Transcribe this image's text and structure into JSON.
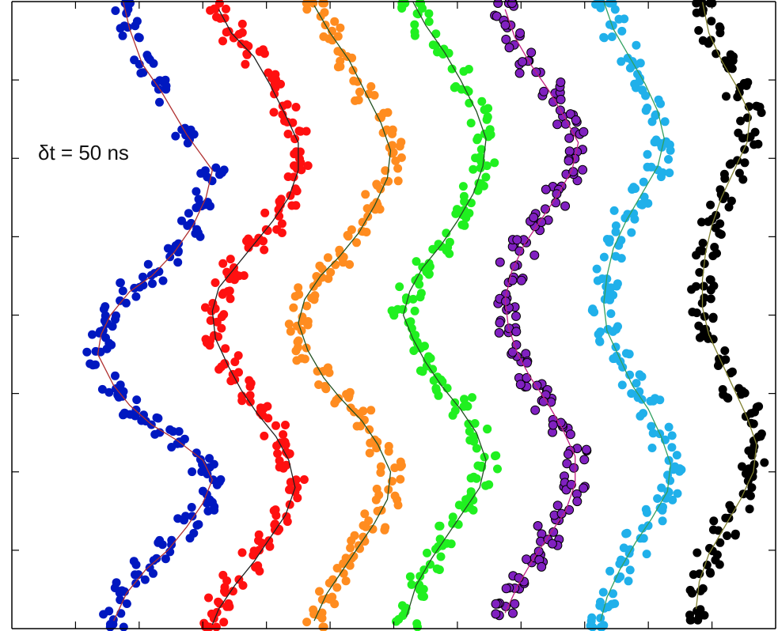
{
  "chart_data": {
    "type": "scatter",
    "title": "",
    "xlabel": "",
    "ylabel": "",
    "xlim": [
      0,
      12
    ],
    "ylim": [
      0,
      8
    ],
    "grid": false,
    "legend": "none",
    "annotation": "δt = 50 ns",
    "x_ticks": [
      1,
      2,
      3,
      4,
      5,
      6,
      7,
      8,
      9,
      10,
      11
    ],
    "y_ticks": [
      1,
      2,
      3,
      4,
      5,
      6,
      7
    ],
    "series": [
      {
        "color": "#0018c0",
        "edge": "#0018c0",
        "fit_color": "#b03030",
        "points": [
          [
            1.75,
            8.0
          ],
          [
            1.85,
            7.65
          ],
          [
            2.05,
            7.2
          ],
          [
            2.35,
            6.85
          ],
          [
            2.75,
            6.3
          ],
          [
            3.15,
            5.85
          ],
          [
            3.05,
            5.5
          ],
          [
            2.85,
            5.15
          ],
          [
            2.55,
            4.8
          ],
          [
            2.2,
            4.5
          ],
          [
            1.85,
            4.3
          ],
          [
            1.55,
            4.0
          ],
          [
            1.4,
            3.75
          ],
          [
            1.35,
            3.5
          ],
          [
            1.6,
            3.1
          ],
          [
            1.85,
            2.85
          ],
          [
            2.2,
            2.6
          ],
          [
            2.6,
            2.4
          ],
          [
            3.0,
            2.15
          ],
          [
            3.15,
            1.9
          ],
          [
            3.0,
            1.6
          ],
          [
            2.75,
            1.3
          ],
          [
            2.45,
            1.0
          ],
          [
            2.1,
            0.75
          ],
          [
            1.8,
            0.45
          ],
          [
            1.6,
            0.1
          ]
        ]
      },
      {
        "color": "#ff1010",
        "edge": "#ff1010",
        "fit_color": "#202020",
        "points": [
          [
            3.25,
            7.9
          ],
          [
            3.45,
            7.6
          ],
          [
            3.8,
            7.3
          ],
          [
            4.05,
            6.95
          ],
          [
            4.3,
            6.55
          ],
          [
            4.5,
            6.2
          ],
          [
            4.5,
            5.85
          ],
          [
            4.35,
            5.5
          ],
          [
            4.1,
            5.2
          ],
          [
            3.8,
            4.9
          ],
          [
            3.5,
            4.6
          ],
          [
            3.25,
            4.35
          ],
          [
            3.15,
            4.05
          ],
          [
            3.2,
            3.7
          ],
          [
            3.4,
            3.35
          ],
          [
            3.6,
            3.05
          ],
          [
            3.85,
            2.75
          ],
          [
            4.15,
            2.45
          ],
          [
            4.35,
            2.15
          ],
          [
            4.45,
            1.8
          ],
          [
            4.3,
            1.45
          ],
          [
            4.05,
            1.15
          ],
          [
            3.8,
            0.85
          ],
          [
            3.5,
            0.55
          ],
          [
            3.25,
            0.25
          ],
          [
            3.15,
            0.05
          ]
        ]
      },
      {
        "color": "#ff8c20",
        "edge": "#ff8c20",
        "fit_color": "#205020",
        "points": [
          [
            4.75,
            7.95
          ],
          [
            5.0,
            7.6
          ],
          [
            5.3,
            7.25
          ],
          [
            5.55,
            6.85
          ],
          [
            5.8,
            6.45
          ],
          [
            5.95,
            6.1
          ],
          [
            5.9,
            5.75
          ],
          [
            5.7,
            5.4
          ],
          [
            5.45,
            5.05
          ],
          [
            5.15,
            4.75
          ],
          [
            4.85,
            4.5
          ],
          [
            4.6,
            4.2
          ],
          [
            4.5,
            3.9
          ],
          [
            4.65,
            3.55
          ],
          [
            4.9,
            3.2
          ],
          [
            5.15,
            2.95
          ],
          [
            5.5,
            2.65
          ],
          [
            5.75,
            2.35
          ],
          [
            5.95,
            2.0
          ],
          [
            5.9,
            1.65
          ],
          [
            5.7,
            1.35
          ],
          [
            5.45,
            1.05
          ],
          [
            5.2,
            0.75
          ],
          [
            4.95,
            0.45
          ],
          [
            4.75,
            0.1
          ]
        ]
      },
      {
        "color": "#20f020",
        "edge": "#20f020",
        "fit_color": "#205020",
        "points": [
          [
            6.3,
            8.0
          ],
          [
            6.5,
            7.7
          ],
          [
            6.8,
            7.35
          ],
          [
            7.05,
            7.0
          ],
          [
            7.3,
            6.6
          ],
          [
            7.45,
            6.25
          ],
          [
            7.4,
            5.9
          ],
          [
            7.25,
            5.55
          ],
          [
            7.0,
            5.2
          ],
          [
            6.75,
            4.9
          ],
          [
            6.45,
            4.6
          ],
          [
            6.25,
            4.3
          ],
          [
            6.15,
            4.0
          ],
          [
            6.3,
            3.7
          ],
          [
            6.5,
            3.4
          ],
          [
            6.75,
            3.1
          ],
          [
            7.05,
            2.8
          ],
          [
            7.3,
            2.5
          ],
          [
            7.45,
            2.15
          ],
          [
            7.35,
            1.8
          ],
          [
            7.1,
            1.5
          ],
          [
            6.85,
            1.2
          ],
          [
            6.6,
            0.9
          ],
          [
            6.35,
            0.55
          ],
          [
            6.2,
            0.15
          ]
        ]
      },
      {
        "color": "#8020c0",
        "edge": "#000000",
        "fit_color": "#c02080",
        "points": [
          [
            7.75,
            7.9
          ],
          [
            7.9,
            7.55
          ],
          [
            8.15,
            7.2
          ],
          [
            8.45,
            6.85
          ],
          [
            8.7,
            6.5
          ],
          [
            8.9,
            6.2
          ],
          [
            8.8,
            5.85
          ],
          [
            8.55,
            5.5
          ],
          [
            8.3,
            5.2
          ],
          [
            8.05,
            4.9
          ],
          [
            7.85,
            4.55
          ],
          [
            7.75,
            4.2
          ],
          [
            7.8,
            3.85
          ],
          [
            7.95,
            3.5
          ],
          [
            8.15,
            3.2
          ],
          [
            8.4,
            2.9
          ],
          [
            8.65,
            2.55
          ],
          [
            8.85,
            2.2
          ],
          [
            8.85,
            1.85
          ],
          [
            8.7,
            1.5
          ],
          [
            8.45,
            1.2
          ],
          [
            8.2,
            0.9
          ],
          [
            7.95,
            0.55
          ],
          [
            7.75,
            0.2
          ]
        ]
      },
      {
        "color": "#20b0ea",
        "edge": "#20b0ea",
        "fit_color": "#30a060",
        "points": [
          [
            9.3,
            8.0
          ],
          [
            9.45,
            7.65
          ],
          [
            9.7,
            7.3
          ],
          [
            9.95,
            6.95
          ],
          [
            10.15,
            6.6
          ],
          [
            10.25,
            6.25
          ],
          [
            10.15,
            5.9
          ],
          [
            9.9,
            5.55
          ],
          [
            9.65,
            5.2
          ],
          [
            9.45,
            4.85
          ],
          [
            9.35,
            4.5
          ],
          [
            9.3,
            4.15
          ],
          [
            9.35,
            3.8
          ],
          [
            9.55,
            3.45
          ],
          [
            9.75,
            3.1
          ],
          [
            10.0,
            2.8
          ],
          [
            10.2,
            2.45
          ],
          [
            10.35,
            2.1
          ],
          [
            10.3,
            1.75
          ],
          [
            10.05,
            1.4
          ],
          [
            9.8,
            1.1
          ],
          [
            9.55,
            0.75
          ],
          [
            9.35,
            0.4
          ],
          [
            9.25,
            0.1
          ]
        ]
      },
      {
        "color": "#000000",
        "edge": "#000000",
        "fit_color": "#808030",
        "points": [
          [
            10.85,
            8.0
          ],
          [
            10.95,
            7.6
          ],
          [
            11.15,
            7.25
          ],
          [
            11.4,
            6.9
          ],
          [
            11.6,
            6.55
          ],
          [
            11.55,
            6.2
          ],
          [
            11.35,
            5.85
          ],
          [
            11.15,
            5.5
          ],
          [
            11.0,
            5.15
          ],
          [
            10.9,
            4.8
          ],
          [
            10.85,
            4.45
          ],
          [
            10.85,
            4.1
          ],
          [
            10.95,
            3.75
          ],
          [
            11.15,
            3.4
          ],
          [
            11.35,
            3.05
          ],
          [
            11.55,
            2.7
          ],
          [
            11.7,
            2.35
          ],
          [
            11.65,
            2.0
          ],
          [
            11.45,
            1.65
          ],
          [
            11.2,
            1.3
          ],
          [
            10.95,
            0.95
          ],
          [
            10.8,
            0.6
          ],
          [
            10.75,
            0.25
          ]
        ]
      }
    ]
  }
}
